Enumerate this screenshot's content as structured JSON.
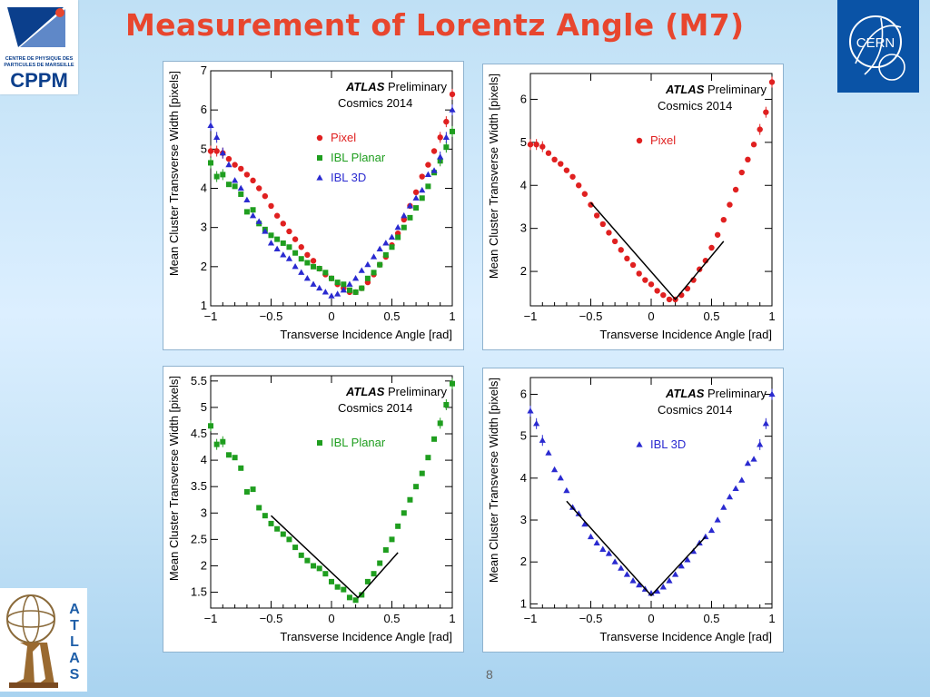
{
  "slide": {
    "title": "Measurement of Lorentz Angle (M7)",
    "page_number": "8"
  },
  "logos": {
    "cppm": {
      "line1": "CENTRE DE PHYSIQUE DES",
      "line2": "PARTICULES DE MARSEILLE",
      "name": "CPPM"
    },
    "cern": {
      "name": "CERN"
    },
    "atlas": {
      "name": "ATLAS"
    }
  },
  "colors": {
    "title": "#e8462e",
    "pixel": "#e02020",
    "ibl_planar": "#1f9e1f",
    "ibl_3d": "#2a2ad0",
    "fit": "#000000"
  },
  "chart_data": [
    {
      "type": "scatter",
      "banner": {
        "experiment": "ATLAS",
        "status": "Preliminary",
        "dataset": "Cosmics 2014"
      },
      "xlabel": "Transverse Incidence Angle [rad]",
      "ylabel": "Mean Cluster Transverse Width [pixels]",
      "xlim": [
        -1,
        1
      ],
      "ylim": [
        1,
        7
      ],
      "xticks": [
        "−1",
        "−0.5",
        "0",
        "0.5",
        "1"
      ],
      "yticks": [
        "1",
        "2",
        "3",
        "4",
        "5",
        "6",
        "7"
      ],
      "legend": "top-right",
      "series": [
        {
          "name": "Pixel",
          "marker": "circle",
          "color": "#e02020",
          "x": [
            -1,
            -0.95,
            -0.9,
            -0.85,
            -0.8,
            -0.75,
            -0.7,
            -0.65,
            -0.6,
            -0.55,
            -0.5,
            -0.45,
            -0.4,
            -0.35,
            -0.3,
            -0.25,
            -0.2,
            -0.15,
            -0.1,
            -0.05,
            0,
            0.05,
            0.1,
            0.15,
            0.2,
            0.25,
            0.3,
            0.35,
            0.4,
            0.45,
            0.5,
            0.55,
            0.6,
            0.65,
            0.7,
            0.75,
            0.8,
            0.85,
            0.9,
            0.95,
            1
          ],
          "y": [
            4.95,
            4.95,
            4.9,
            4.75,
            4.6,
            4.5,
            4.35,
            4.2,
            4.0,
            3.8,
            3.55,
            3.3,
            3.1,
            2.9,
            2.7,
            2.5,
            2.3,
            2.15,
            1.95,
            1.8,
            1.7,
            1.55,
            1.45,
            1.35,
            1.35,
            1.45,
            1.6,
            1.8,
            2.05,
            2.25,
            2.55,
            2.85,
            3.2,
            3.55,
            3.9,
            4.3,
            4.6,
            4.95,
            5.3,
            5.7,
            6.4
          ]
        },
        {
          "name": "IBL Planar",
          "marker": "square",
          "color": "#1f9e1f",
          "x": [
            -1,
            -0.95,
            -0.9,
            -0.85,
            -0.8,
            -0.75,
            -0.7,
            -0.65,
            -0.6,
            -0.55,
            -0.5,
            -0.45,
            -0.4,
            -0.35,
            -0.3,
            -0.25,
            -0.2,
            -0.15,
            -0.1,
            -0.05,
            0,
            0.05,
            0.1,
            0.15,
            0.2,
            0.25,
            0.3,
            0.35,
            0.4,
            0.45,
            0.5,
            0.55,
            0.6,
            0.65,
            0.7,
            0.75,
            0.8,
            0.85,
            0.9,
            0.95,
            1
          ],
          "y": [
            4.65,
            4.3,
            4.35,
            4.1,
            4.05,
            3.85,
            3.4,
            3.45,
            3.1,
            2.95,
            2.8,
            2.7,
            2.6,
            2.5,
            2.35,
            2.2,
            2.1,
            2.0,
            1.95,
            1.85,
            1.7,
            1.6,
            1.55,
            1.4,
            1.35,
            1.45,
            1.7,
            1.85,
            2.05,
            2.3,
            2.5,
            2.75,
            3.0,
            3.25,
            3.5,
            3.75,
            4.05,
            4.4,
            4.7,
            5.05,
            5.45
          ]
        },
        {
          "name": "IBL 3D",
          "marker": "triangle",
          "color": "#2a2ad0",
          "x": [
            -1,
            -0.95,
            -0.9,
            -0.85,
            -0.8,
            -0.75,
            -0.7,
            -0.65,
            -0.6,
            -0.55,
            -0.5,
            -0.45,
            -0.4,
            -0.35,
            -0.3,
            -0.25,
            -0.2,
            -0.15,
            -0.1,
            -0.05,
            0,
            0.05,
            0.1,
            0.15,
            0.2,
            0.25,
            0.3,
            0.35,
            0.4,
            0.45,
            0.5,
            0.55,
            0.6,
            0.65,
            0.7,
            0.75,
            0.8,
            0.85,
            0.9,
            0.95,
            1
          ],
          "y": [
            5.6,
            5.3,
            4.9,
            4.6,
            4.2,
            4.0,
            3.7,
            3.3,
            3.15,
            2.9,
            2.6,
            2.45,
            2.3,
            2.2,
            2.0,
            1.85,
            1.7,
            1.55,
            1.45,
            1.35,
            1.25,
            1.3,
            1.4,
            1.55,
            1.7,
            1.9,
            2.05,
            2.25,
            2.45,
            2.6,
            2.75,
            3.0,
            3.3,
            3.55,
            3.75,
            3.95,
            4.35,
            4.45,
            4.8,
            5.3,
            6.0
          ]
        }
      ]
    },
    {
      "type": "scatter",
      "banner": {
        "experiment": "ATLAS",
        "status": "Preliminary",
        "dataset": "Cosmics 2014"
      },
      "xlabel": "Transverse Incidence Angle [rad]",
      "ylabel": "Mean Cluster Transverse Width [pixels]",
      "xlim": [
        -1,
        1
      ],
      "ylim": [
        1.2,
        6.6
      ],
      "xticks": [
        "−1",
        "−0.5",
        "0",
        "0.5",
        "1"
      ],
      "yticks": [
        "2",
        "3",
        "4",
        "5",
        "6"
      ],
      "legend": "top-right",
      "series": [
        {
          "name": "Pixel",
          "marker": "circle",
          "color": "#e02020",
          "x": [
            -1,
            -0.95,
            -0.9,
            -0.85,
            -0.8,
            -0.75,
            -0.7,
            -0.65,
            -0.6,
            -0.55,
            -0.5,
            -0.45,
            -0.4,
            -0.35,
            -0.3,
            -0.25,
            -0.2,
            -0.15,
            -0.1,
            -0.05,
            0,
            0.05,
            0.1,
            0.15,
            0.2,
            0.25,
            0.3,
            0.35,
            0.4,
            0.45,
            0.5,
            0.55,
            0.6,
            0.65,
            0.7,
            0.75,
            0.8,
            0.85,
            0.9,
            0.95,
            1
          ],
          "y": [
            4.95,
            4.95,
            4.9,
            4.75,
            4.6,
            4.5,
            4.35,
            4.2,
            4.0,
            3.8,
            3.55,
            3.3,
            3.1,
            2.9,
            2.7,
            2.5,
            2.3,
            2.15,
            1.95,
            1.8,
            1.7,
            1.55,
            1.45,
            1.35,
            1.35,
            1.45,
            1.6,
            1.8,
            2.05,
            2.25,
            2.55,
            2.85,
            3.2,
            3.55,
            3.9,
            4.3,
            4.6,
            4.95,
            5.3,
            5.7,
            6.4
          ]
        },
        {
          "name": "Fit",
          "type": "line",
          "color": "#000000",
          "x": [
            -0.5,
            0.2,
            0.6
          ],
          "y": [
            3.6,
            1.35,
            2.7
          ]
        }
      ]
    },
    {
      "type": "scatter",
      "banner": {
        "experiment": "ATLAS",
        "status": "Preliminary",
        "dataset": "Cosmics 2014"
      },
      "xlabel": "Transverse Incidence Angle [rad]",
      "ylabel": "Mean Cluster Transverse Width [pixels]",
      "xlim": [
        -1,
        1
      ],
      "ylim": [
        1.2,
        5.6
      ],
      "xticks": [
        "−1",
        "−0.5",
        "0",
        "0.5",
        "1"
      ],
      "yticks": [
        "1.5",
        "2",
        "2.5",
        "3",
        "3.5",
        "4",
        "4.5",
        "5",
        "5.5"
      ],
      "legend": "top-right",
      "series": [
        {
          "name": "IBL Planar",
          "marker": "square",
          "color": "#1f9e1f",
          "x": [
            -1,
            -0.95,
            -0.9,
            -0.85,
            -0.8,
            -0.75,
            -0.7,
            -0.65,
            -0.6,
            -0.55,
            -0.5,
            -0.45,
            -0.4,
            -0.35,
            -0.3,
            -0.25,
            -0.2,
            -0.15,
            -0.1,
            -0.05,
            0,
            0.05,
            0.1,
            0.15,
            0.2,
            0.25,
            0.3,
            0.35,
            0.4,
            0.45,
            0.5,
            0.55,
            0.6,
            0.65,
            0.7,
            0.75,
            0.8,
            0.85,
            0.9,
            0.95,
            1
          ],
          "y": [
            4.65,
            4.3,
            4.35,
            4.1,
            4.05,
            3.85,
            3.4,
            3.45,
            3.1,
            2.95,
            2.8,
            2.7,
            2.6,
            2.5,
            2.35,
            2.2,
            2.1,
            2.0,
            1.95,
            1.85,
            1.7,
            1.6,
            1.55,
            1.4,
            1.35,
            1.45,
            1.7,
            1.85,
            2.05,
            2.3,
            2.5,
            2.75,
            3.0,
            3.25,
            3.5,
            3.75,
            4.05,
            4.4,
            4.7,
            5.05,
            5.45
          ]
        },
        {
          "name": "Fit",
          "type": "line",
          "color": "#000000",
          "x": [
            -0.5,
            0.22,
            0.55
          ],
          "y": [
            2.95,
            1.4,
            2.25
          ]
        }
      ]
    },
    {
      "type": "scatter",
      "banner": {
        "experiment": "ATLAS",
        "status": "Preliminary",
        "dataset": "Cosmics 2014"
      },
      "xlabel": "Transverse Incidence Angle [rad]",
      "ylabel": "Mean Cluster Transverse Width [pixels]",
      "xlim": [
        -1,
        1
      ],
      "ylim": [
        0.9,
        6.4
      ],
      "xticks": [
        "−1",
        "−0.5",
        "0",
        "0.5",
        "1"
      ],
      "yticks": [
        "1",
        "2",
        "3",
        "4",
        "5",
        "6"
      ],
      "legend": "top-right",
      "series": [
        {
          "name": "IBL 3D",
          "marker": "triangle",
          "color": "#2a2ad0",
          "x": [
            -1,
            -0.95,
            -0.9,
            -0.85,
            -0.8,
            -0.75,
            -0.7,
            -0.65,
            -0.6,
            -0.55,
            -0.5,
            -0.45,
            -0.4,
            -0.35,
            -0.3,
            -0.25,
            -0.2,
            -0.15,
            -0.1,
            -0.05,
            0,
            0.05,
            0.1,
            0.15,
            0.2,
            0.25,
            0.3,
            0.35,
            0.4,
            0.45,
            0.5,
            0.55,
            0.6,
            0.65,
            0.7,
            0.75,
            0.8,
            0.85,
            0.9,
            0.95,
            1
          ],
          "y": [
            5.6,
            5.3,
            4.9,
            4.6,
            4.2,
            4.0,
            3.7,
            3.3,
            3.15,
            2.9,
            2.6,
            2.45,
            2.3,
            2.2,
            2.0,
            1.85,
            1.7,
            1.55,
            1.45,
            1.35,
            1.25,
            1.3,
            1.4,
            1.55,
            1.7,
            1.9,
            2.05,
            2.25,
            2.45,
            2.6,
            2.75,
            3.0,
            3.3,
            3.55,
            3.75,
            3.95,
            4.35,
            4.45,
            4.8,
            5.3,
            6.0
          ]
        },
        {
          "name": "Fit",
          "type": "line",
          "color": "#000000",
          "x": [
            -0.7,
            0.0,
            0.45
          ],
          "y": [
            3.45,
            1.2,
            2.6
          ]
        }
      ]
    }
  ]
}
